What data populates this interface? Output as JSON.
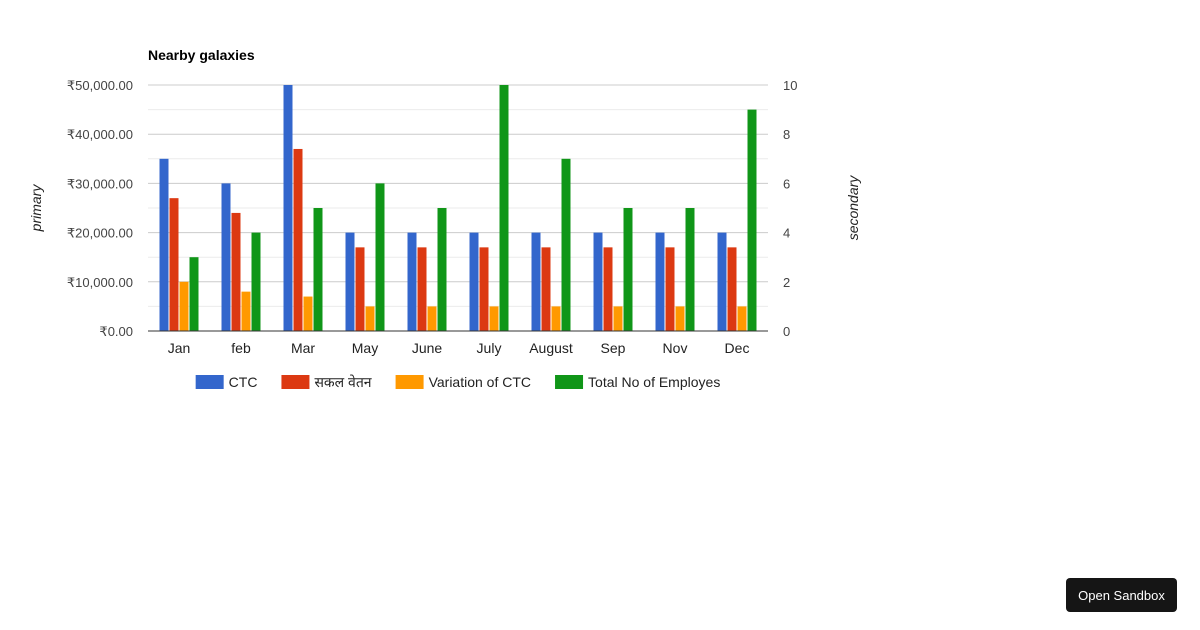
{
  "button": {
    "open_sandbox": "Open Sandbox"
  },
  "chart_data": {
    "type": "bar",
    "title": "Nearby galaxies",
    "categories": [
      "Jan",
      "feb",
      "Mar",
      "May",
      "June",
      "July",
      "August",
      "Sep",
      "Nov",
      "Dec"
    ],
    "series": [
      {
        "name": "CTC",
        "axis": "primary",
        "color": "#3366cc",
        "values": [
          35000,
          30000,
          50000,
          20000,
          20000,
          20000,
          20000,
          20000,
          20000,
          20000
        ]
      },
      {
        "name": "सकल वेतन",
        "axis": "primary",
        "color": "#dc3912",
        "values": [
          27000,
          24000,
          37000,
          17000,
          17000,
          17000,
          17000,
          17000,
          17000,
          17000
        ]
      },
      {
        "name": "Variation of CTC",
        "axis": "primary",
        "color": "#ff9900",
        "values": [
          10000,
          8000,
          7000,
          5000,
          5000,
          5000,
          5000,
          5000,
          5000,
          5000
        ]
      },
      {
        "name": "Total No of Employes",
        "axis": "secondary",
        "color": "#109618",
        "values": [
          3,
          4,
          5,
          6,
          5,
          10,
          7,
          5,
          5,
          9
        ]
      }
    ],
    "primary_axis": {
      "title": "primary",
      "range": [
        0,
        50000
      ],
      "tick_labels": [
        "₹0.00",
        "₹10,000.00",
        "₹20,000.00",
        "₹30,000.00",
        "₹40,000.00",
        "₹50,000.00"
      ]
    },
    "secondary_axis": {
      "title": "secondary",
      "range": [
        0,
        10
      ],
      "tick_labels": [
        "0",
        "2",
        "4",
        "6",
        "8",
        "10"
      ]
    },
    "legend_position": "bottom",
    "grid": true
  }
}
